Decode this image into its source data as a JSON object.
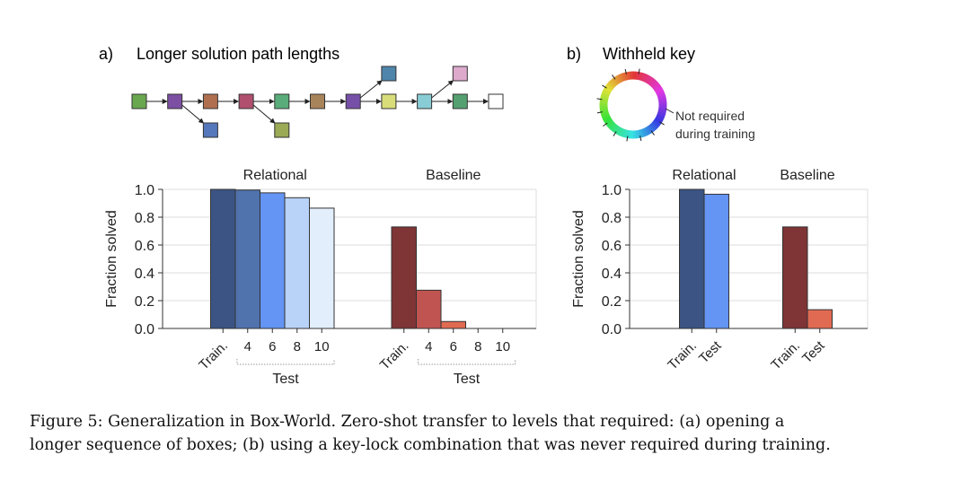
{
  "panel_a": {
    "label": "a)",
    "title": "Longer solution path lengths"
  },
  "panel_b": {
    "label": "b)",
    "title": "Withheld key",
    "wheel_note_line1": "Not required",
    "wheel_note_line2": "during training"
  },
  "diagram": {
    "main": [
      "#6aa84f",
      "#7d4fa3",
      "#b07050",
      "#b0506e",
      "#5aad7a",
      "#a8845a",
      "#7650a8",
      "#d8dd7a",
      "#88ccd6",
      "#55a070",
      "#ffffff"
    ],
    "branches": [
      {
        "from": 1,
        "dir": "down",
        "color": "#5577bb"
      },
      {
        "from": 3,
        "dir": "down",
        "color": "#9aaa55"
      },
      {
        "from": 6,
        "dir": "up",
        "color": "#4f85aa"
      },
      {
        "from": 8,
        "dir": "up",
        "color": "#ddaacc"
      }
    ]
  },
  "chart_data": [
    {
      "type": "bar",
      "title": "Longer solution path lengths",
      "ylabel": "Fraction solved",
      "ylim": [
        0,
        1.0
      ],
      "yticks": [
        "0.0",
        "0.2",
        "0.4",
        "0.6",
        "0.8",
        "1.0"
      ],
      "grid": true,
      "groups": [
        {
          "name": "Relational",
          "categories": [
            "Train.",
            "4",
            "6",
            "8",
            "10"
          ],
          "values": [
            1.0,
            0.995,
            0.975,
            0.94,
            0.865
          ],
          "colors": [
            "#3b5484",
            "#5072ad",
            "#6494f4",
            "#b8d2f8",
            "#e2eefc"
          ]
        },
        {
          "name": "Baseline",
          "categories": [
            "Train.",
            "4",
            "6",
            "8",
            "10"
          ],
          "values": [
            0.73,
            0.275,
            0.05,
            0,
            0
          ],
          "colors": [
            "#7f3436",
            "#c05450",
            "#e06a52",
            "#f0a090",
            "#f8c8c0"
          ]
        }
      ],
      "test_label": "Test"
    },
    {
      "type": "bar",
      "title": "Withheld key",
      "ylabel": "Fraction solved",
      "ylim": [
        0,
        1.0
      ],
      "yticks": [
        "0.0",
        "0.2",
        "0.4",
        "0.6",
        "0.8",
        "1.0"
      ],
      "grid": true,
      "groups": [
        {
          "name": "Relational",
          "categories": [
            "Train.",
            "Test"
          ],
          "values": [
            1.0,
            0.965
          ],
          "colors": [
            "#3b5484",
            "#6494f4"
          ]
        },
        {
          "name": "Baseline",
          "categories": [
            "Train.",
            "Test"
          ],
          "values": [
            0.73,
            0.135
          ],
          "colors": [
            "#7f3436",
            "#e06a52"
          ]
        }
      ]
    }
  ],
  "caption": {
    "line1": "Figure 5: Generalization in Box-World. Zero-shot transfer to levels that required: (a) opening a",
    "line2": "longer sequence of boxes; (b) using a key-lock combination that was never required during training."
  }
}
